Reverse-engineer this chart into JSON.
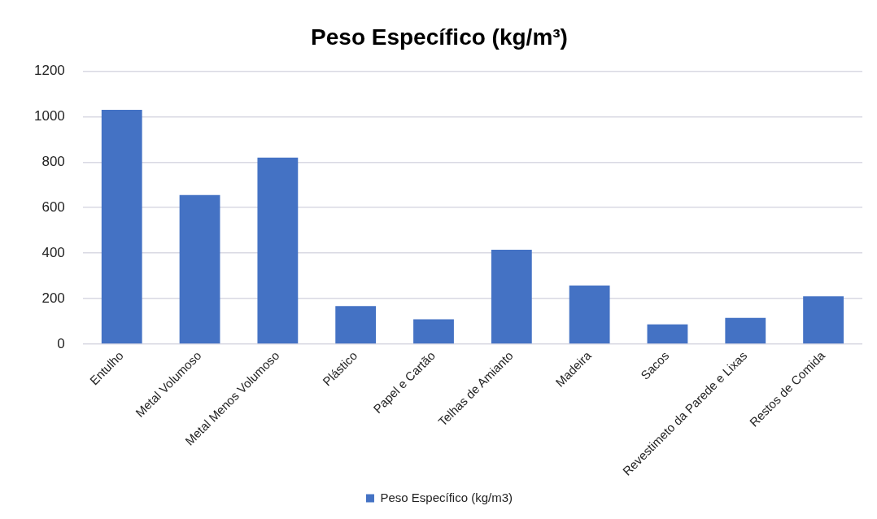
{
  "chart_data": {
    "type": "bar",
    "title": "Peso Específico (kg/m³)",
    "categories": [
      "Entulho",
      "Metal Volumoso",
      "Metal Menos Volumoso",
      "Plástico",
      "Papel e Cartão",
      "Telhas de Amianto",
      "Madeira",
      "Sacos",
      "Revestimeto da Parede e Lixas",
      "Restos de Comida"
    ],
    "series": [
      {
        "name": "Peso Específico (kg/m3)",
        "color": "#4472c4",
        "values": [
          1030,
          655,
          820,
          167,
          109,
          415,
          257,
          86,
          115,
          210
        ]
      }
    ],
    "ylim": [
      0,
      1200
    ],
    "yticks": [
      0,
      200,
      400,
      600,
      800,
      1000,
      1200
    ],
    "grid": "y",
    "legend": "bottom"
  }
}
